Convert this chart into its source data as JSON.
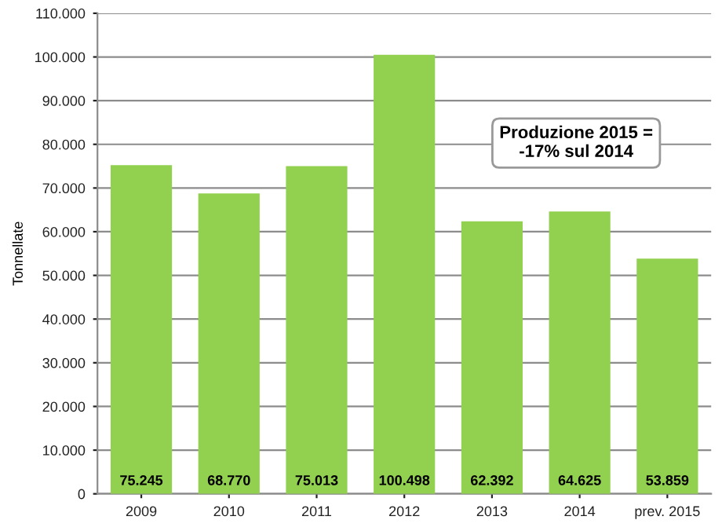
{
  "chart_data": {
    "type": "bar",
    "ylabel": "Tonnellate",
    "categories": [
      "2009",
      "2010",
      "2011",
      "2012",
      "2013",
      "2014",
      "prev. 2015"
    ],
    "values": [
      75245,
      68770,
      75013,
      100498,
      62392,
      64625,
      53859
    ],
    "value_labels": [
      "75.245",
      "68.770",
      "75.013",
      "100.498",
      "62.392",
      "64.625",
      "53.859"
    ],
    "color": "#92d050",
    "ylim": [
      0,
      110000
    ],
    "yticks": [
      0,
      {
        "value": 10000,
        "label": "10.000"
      },
      {
        "value": 20000,
        "label": "20.000"
      },
      {
        "value": 30000,
        "label": "30.000"
      },
      {
        "value": 40000,
        "label": "40.000"
      },
      {
        "value": 50000,
        "label": "50.000"
      },
      {
        "value": 60000,
        "label": "60.000"
      },
      {
        "value": 70000,
        "label": "70.000"
      },
      {
        "value": 80000,
        "label": "80.000"
      },
      {
        "value": 90000,
        "label": "90.000"
      },
      {
        "value": 100000,
        "label": "100.000"
      },
      {
        "value": 110000,
        "label": "110.000"
      }
    ],
    "grid": "y",
    "annotations": [
      "Produzione 2015 =\n-17% sul 2014"
    ]
  }
}
